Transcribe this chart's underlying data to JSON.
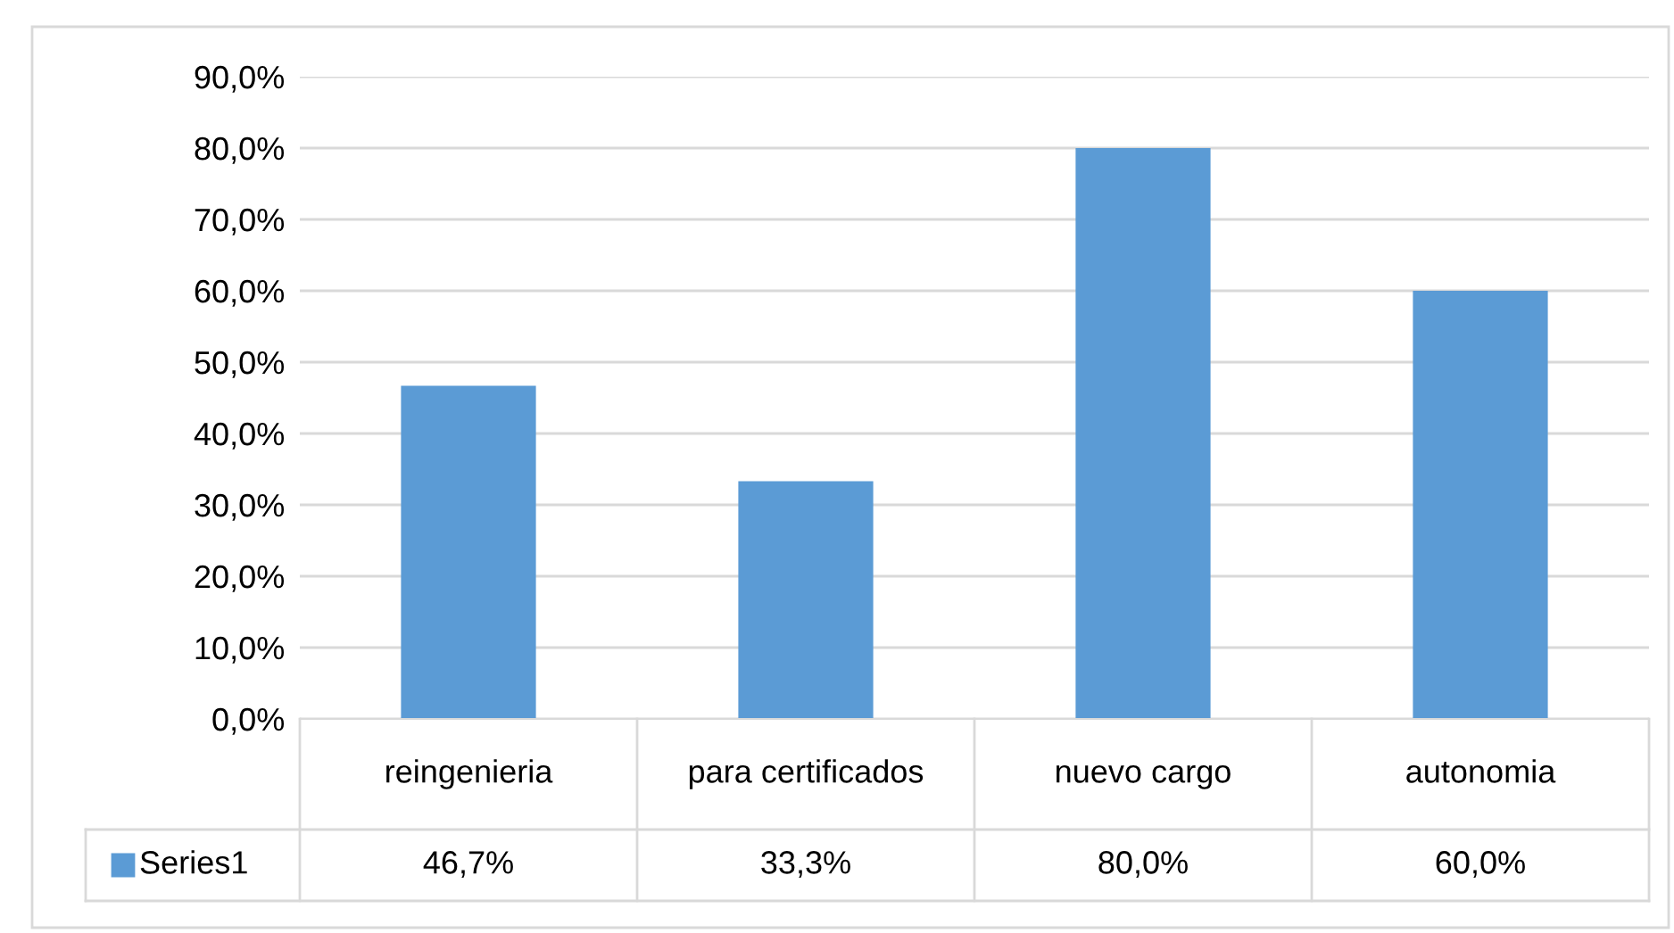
{
  "chart_data": {
    "type": "bar",
    "categories": [
      "reingenieria",
      "para certificados",
      "nuevo cargo",
      "autonomia"
    ],
    "series": [
      {
        "name": "Series1",
        "color": "#5b9bd5",
        "values": [
          46.7,
          33.3,
          80.0,
          60.0
        ],
        "value_labels": [
          "46,7%",
          "33,3%",
          "80,0%",
          "60,0%"
        ]
      }
    ],
    "ylim": [
      0,
      90
    ],
    "yticks": [
      {
        "value": 0,
        "label": "0,0%"
      },
      {
        "value": 10,
        "label": "10,0%"
      },
      {
        "value": 20,
        "label": "20,0%"
      },
      {
        "value": 30,
        "label": "30,0%"
      },
      {
        "value": 40,
        "label": "40,0%"
      },
      {
        "value": 50,
        "label": "50,0%"
      },
      {
        "value": 60,
        "label": "60,0%"
      },
      {
        "value": 70,
        "label": "70,0%"
      },
      {
        "value": 80,
        "label": "80,0%"
      },
      {
        "value": 90,
        "label": "90,0%"
      }
    ],
    "grid": "y",
    "legend": "bottom"
  }
}
